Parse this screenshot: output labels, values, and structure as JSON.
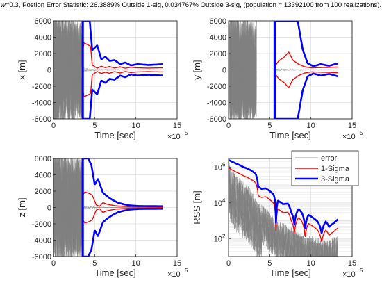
{
  "title": {
    "w_label": "w",
    "text": "=0.3, Postion Error Statistic: 26.3889% Outside 1-sig, 0.034767% Outside 3-sig, (population = 13392100 from 100 realizations)."
  },
  "colors": {
    "error": "#808080",
    "one_sigma": "#ff0000",
    "three_sigma": "#0000ff",
    "axis": "#262626",
    "grid": "#dedede"
  },
  "chart_data": [
    {
      "id": "x",
      "type": "line",
      "ylabel": "x [m]",
      "xlabel": "Time [sec]",
      "x_exponent": "×10",
      "x_exponent_power": "5",
      "xlim": [
        0,
        15
      ],
      "ylim": [
        -6000,
        6000
      ],
      "xticks": [
        0,
        5,
        10,
        15
      ],
      "xtick_labels": [
        "0",
        "5",
        "10",
        "15"
      ],
      "yticks": [
        -6000,
        -4000,
        -2000,
        0,
        2000,
        4000,
        6000
      ],
      "ytick_labels": [
        "-6000",
        "-4000",
        "-2000",
        "0",
        "2000",
        "4000",
        "6000"
      ],
      "grid": true,
      "series": [
        {
          "name": "error",
          "role": "error",
          "noise_until": 3.4,
          "values_x": [
            3.4,
            4.5,
            5.5,
            6.5,
            8,
            10,
            13.3
          ],
          "values_y": [
            300,
            150,
            100,
            80,
            60,
            40,
            30
          ]
        },
        {
          "name": "1-Sigma",
          "role": "one_sigma",
          "values_x": [
            3.55,
            3.7,
            4.3,
            4.5,
            4.7,
            5.3,
            5.8,
            6.3,
            6.8,
            7.4,
            8.1,
            8.7,
            9.4,
            10.2,
            11.5,
            12.5,
            13.3
          ],
          "values_y": [
            2400,
            3300,
            3000,
            2900,
            600,
            200,
            450,
            280,
            420,
            220,
            380,
            200,
            330,
            250,
            220,
            240,
            250
          ]
        },
        {
          "name": "3-Sigma",
          "role": "three_sigma",
          "values_x": [
            3.55,
            3.7,
            4.0,
            4.4,
            4.7,
            5.3,
            5.8,
            6.3,
            6.8,
            7.4,
            8.1,
            8.7,
            9.4,
            10.2,
            11.5,
            12.5,
            13.3
          ],
          "values_y": [
            6000,
            6000,
            6000,
            6000,
            2400,
            3000,
            1300,
            1600,
            1100,
            1200,
            700,
            900,
            550,
            700,
            600,
            650,
            700
          ]
        }
      ]
    },
    {
      "id": "y",
      "type": "line",
      "ylabel": "y [m]",
      "xlabel": "Time [sec]",
      "x_exponent": "×10",
      "x_exponent_power": "5",
      "xlim": [
        0,
        15
      ],
      "ylim": [
        -6000,
        6000
      ],
      "xticks": [
        0,
        5,
        10,
        15
      ],
      "xtick_labels": [
        "0",
        "5",
        "10",
        "15"
      ],
      "yticks": [
        -6000,
        -4000,
        -2000,
        0,
        2000,
        4000,
        6000
      ],
      "ytick_labels": [
        "-6000",
        "-4000",
        "-2000",
        "0",
        "2000",
        "4000",
        "6000"
      ],
      "grid": true,
      "series": [
        {
          "name": "error",
          "role": "error",
          "noise_until": 3.4,
          "values_x": [
            5.5,
            6.5,
            8,
            10,
            13.3
          ],
          "values_y": [
            150,
            120,
            80,
            50,
            40
          ]
        },
        {
          "name": "1-Sigma",
          "role": "one_sigma",
          "values_x": [
            5.6,
            6.1,
            6.8,
            7.3,
            7.8,
            8.5,
            9.2,
            10.0,
            11.0,
            12.0,
            13.3
          ],
          "values_y": [
            400,
            1100,
            1600,
            2200,
            1200,
            700,
            400,
            250,
            280,
            300,
            350
          ]
        },
        {
          "name": "3-Sigma",
          "role": "three_sigma",
          "values_x": [
            5.6,
            6.0,
            6.6,
            7.2,
            7.8,
            8.4,
            9.0,
            9.6,
            10.3,
            11.2,
            12.2,
            13.3
          ],
          "values_y": [
            6000,
            6000,
            6000,
            6000,
            6000,
            6000,
            2500,
            800,
            450,
            700,
            500,
            800
          ]
        }
      ]
    },
    {
      "id": "z",
      "type": "line",
      "ylabel": "z [m]",
      "xlabel": "Time [sec]",
      "x_exponent": "×10",
      "x_exponent_power": "5",
      "xlim": [
        0,
        15
      ],
      "ylim": [
        -6000,
        6000
      ],
      "xticks": [
        0,
        5,
        10,
        15
      ],
      "xtick_labels": [
        "0",
        "5",
        "10",
        "15"
      ],
      "yticks": [
        -6000,
        -4000,
        -2000,
        0,
        2000,
        4000,
        6000
      ],
      "ytick_labels": [
        "-6000",
        "-4000",
        "-2000",
        "0",
        "2000",
        "4000",
        "6000"
      ],
      "grid": true,
      "series": [
        {
          "name": "error",
          "role": "error",
          "noise_until": 3.4,
          "values_x": [
            3.4,
            4.5,
            5.5,
            7,
            9,
            13.3
          ],
          "values_y": [
            250,
            120,
            60,
            40,
            30,
            20
          ]
        },
        {
          "name": "1-Sigma",
          "role": "one_sigma",
          "values_x": [
            3.55,
            3.8,
            4.4,
            4.7,
            5.2,
            5.6,
            6.0,
            6.5,
            7.0,
            7.6,
            8.2,
            9.0,
            10.0,
            13.3
          ],
          "values_y": [
            1500,
            1900,
            1700,
            1500,
            300,
            150,
            600,
            400,
            300,
            200,
            150,
            100,
            80,
            60
          ]
        },
        {
          "name": "3-Sigma",
          "role": "three_sigma",
          "values_x": [
            3.55,
            3.8,
            4.2,
            4.6,
            5.0,
            5.4,
            6.0,
            6.6,
            7.2,
            7.8,
            8.5,
            9.3,
            10.3,
            13.3
          ],
          "values_y": [
            6000,
            6000,
            6000,
            5200,
            2800,
            3500,
            1800,
            1300,
            900,
            600,
            400,
            250,
            180,
            150
          ]
        }
      ]
    },
    {
      "id": "rss",
      "type": "line",
      "yscale": "log",
      "ylabel": "RSS [m]",
      "xlabel": "Time [sec]",
      "x_exponent": "×10",
      "x_exponent_power": "5",
      "xlim": [
        0,
        15
      ],
      "ylim": [
        10,
        3000000
      ],
      "xticks": [
        0,
        5,
        10,
        15
      ],
      "xtick_labels": [
        "0",
        "5",
        "10",
        "15"
      ],
      "yticks": [
        100,
        10000,
        1000000
      ],
      "ytick_labels": [
        {
          "base": "10",
          "exp": "2"
        },
        {
          "base": "10",
          "exp": "4"
        },
        {
          "base": "10",
          "exp": "6"
        }
      ],
      "grid": true,
      "legend": {
        "placement": "top-right",
        "entries": [
          "error",
          "1-Sigma",
          "3-Sigma"
        ]
      },
      "series": [
        {
          "name": "error",
          "role": "error",
          "values_x": [
            0,
            0.5,
            1,
            1.5,
            2,
            2.5,
            3,
            3.5,
            4,
            4.5,
            5,
            5.5,
            6,
            7,
            8,
            9,
            10,
            11,
            12,
            13.3
          ],
          "values_y": [
            2000000,
            600000,
            300000,
            200000,
            120000,
            80000,
            30000,
            10000,
            8000,
            5000,
            3000,
            1500,
            1000,
            600,
            300,
            150,
            150,
            100,
            80,
            150
          ]
        },
        {
          "name": "1-Sigma",
          "role": "one_sigma",
          "values_x": [
            0,
            0.4,
            1.0,
            1.8,
            2.6,
            3.3,
            3.6,
            4.0,
            4.5,
            5.0,
            5.5,
            5.75,
            6.0,
            6.6,
            7.2,
            7.6,
            8.0,
            8.5,
            8.9,
            9.3,
            9.7,
            10.2,
            10.8,
            11.3,
            11.8,
            12.2,
            12.8,
            13.3
          ],
          "values_y": [
            900000,
            700000,
            500000,
            330000,
            220000,
            130000,
            25000,
            20000,
            22000,
            15000,
            9000,
            100,
            4500,
            2800,
            3000,
            1000,
            200,
            1500,
            900,
            100,
            700,
            500,
            300,
            60,
            300,
            150,
            250,
            400
          ]
        },
        {
          "name": "3-Sigma",
          "role": "three_sigma",
          "values_x": [
            0,
            0.4,
            1.0,
            1.8,
            2.6,
            3.3,
            3.6,
            4.0,
            4.5,
            5.0,
            5.5,
            5.75,
            6.0,
            6.6,
            7.2,
            7.6,
            8.0,
            8.5,
            8.9,
            9.3,
            9.7,
            10.2,
            10.8,
            11.3,
            11.8,
            12.2,
            12.8,
            13.3
          ],
          "values_y": [
            2500000,
            2000000,
            1500000,
            1000000,
            700000,
            400000,
            80000,
            60000,
            65000,
            45000,
            27000,
            300,
            13000,
            8500,
            9000,
            3000,
            600,
            4500,
            2700,
            300,
            2100,
            1500,
            900,
            180,
            900,
            450,
            750,
            1200
          ]
        }
      ]
    }
  ]
}
